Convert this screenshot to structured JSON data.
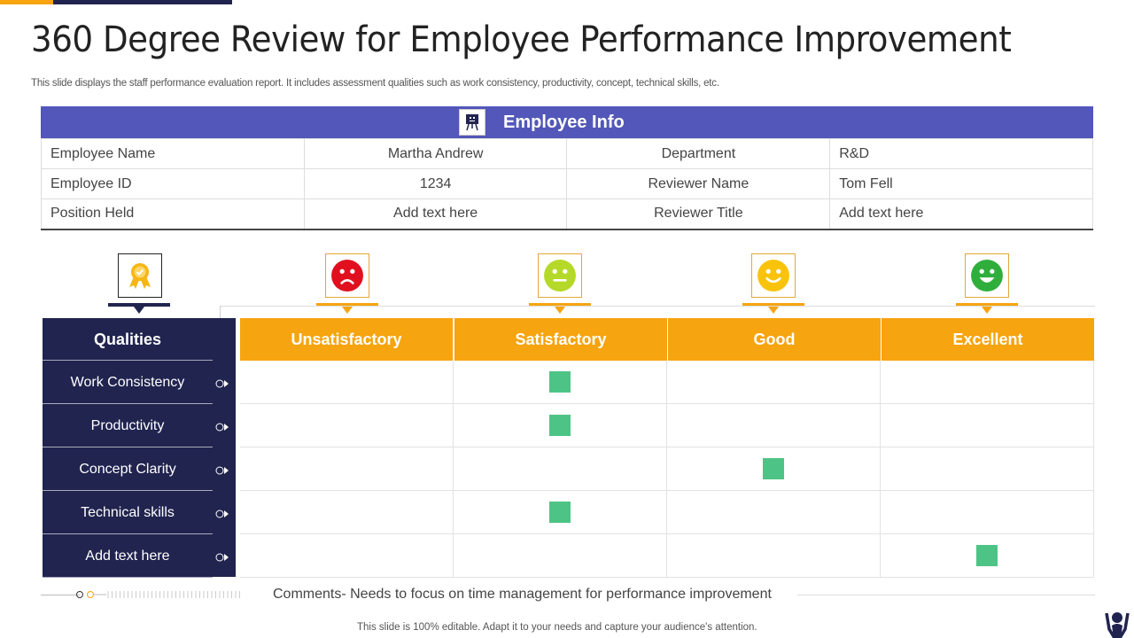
{
  "title": "360 Degree Review for Employee Performance Improvement",
  "subtitle": "This slide displays the staff performance evaluation report. It includes assessment qualities such as work consistency, productivity,  concept, technical skills, etc.",
  "employee_info": {
    "header": "Employee Info",
    "icon": "presentation-board-icon",
    "rows": [
      [
        "Employee Name",
        "Martha Andrew",
        "Department",
        "R&D"
      ],
      [
        "Employee ID",
        "1234",
        "Reviewer Name",
        "Tom Fell"
      ],
      [
        "Position Held",
        "Add text here",
        "Reviewer Title",
        "Add text here"
      ]
    ]
  },
  "ratings": {
    "qualities_header": "Qualities",
    "qualities_icon": "medal-icon",
    "levels": [
      {
        "label": "Unsatisfactory",
        "icon": "sad-face-icon",
        "color": "#e0101e"
      },
      {
        "label": "Satisfactory",
        "icon": "neutral-face-icon",
        "color": "#b5d928"
      },
      {
        "label": "Good",
        "icon": "smile-face-icon",
        "color": "#f9c30c"
      },
      {
        "label": "Excellent",
        "icon": "happy-face-icon",
        "color": "#2fae3c"
      }
    ],
    "rows": [
      {
        "quality": "Work Consistency",
        "rating": "Satisfactory"
      },
      {
        "quality": "Productivity",
        "rating": "Satisfactory"
      },
      {
        "quality": "Concept Clarity",
        "rating": "Good"
      },
      {
        "quality": "Technical skills",
        "rating": "Satisfactory"
      },
      {
        "quality": "Add text here",
        "rating": "Excellent"
      }
    ]
  },
  "comments": "Comments- Needs to focus on time management for performance improvement",
  "footer": "This slide is 100% editable. Adapt it to your needs and capture your audience's attention.",
  "colors": {
    "header_purple": "#5257b9",
    "navy": "#21244f",
    "orange": "#f6a40f",
    "marker_green": "#4dc485"
  }
}
